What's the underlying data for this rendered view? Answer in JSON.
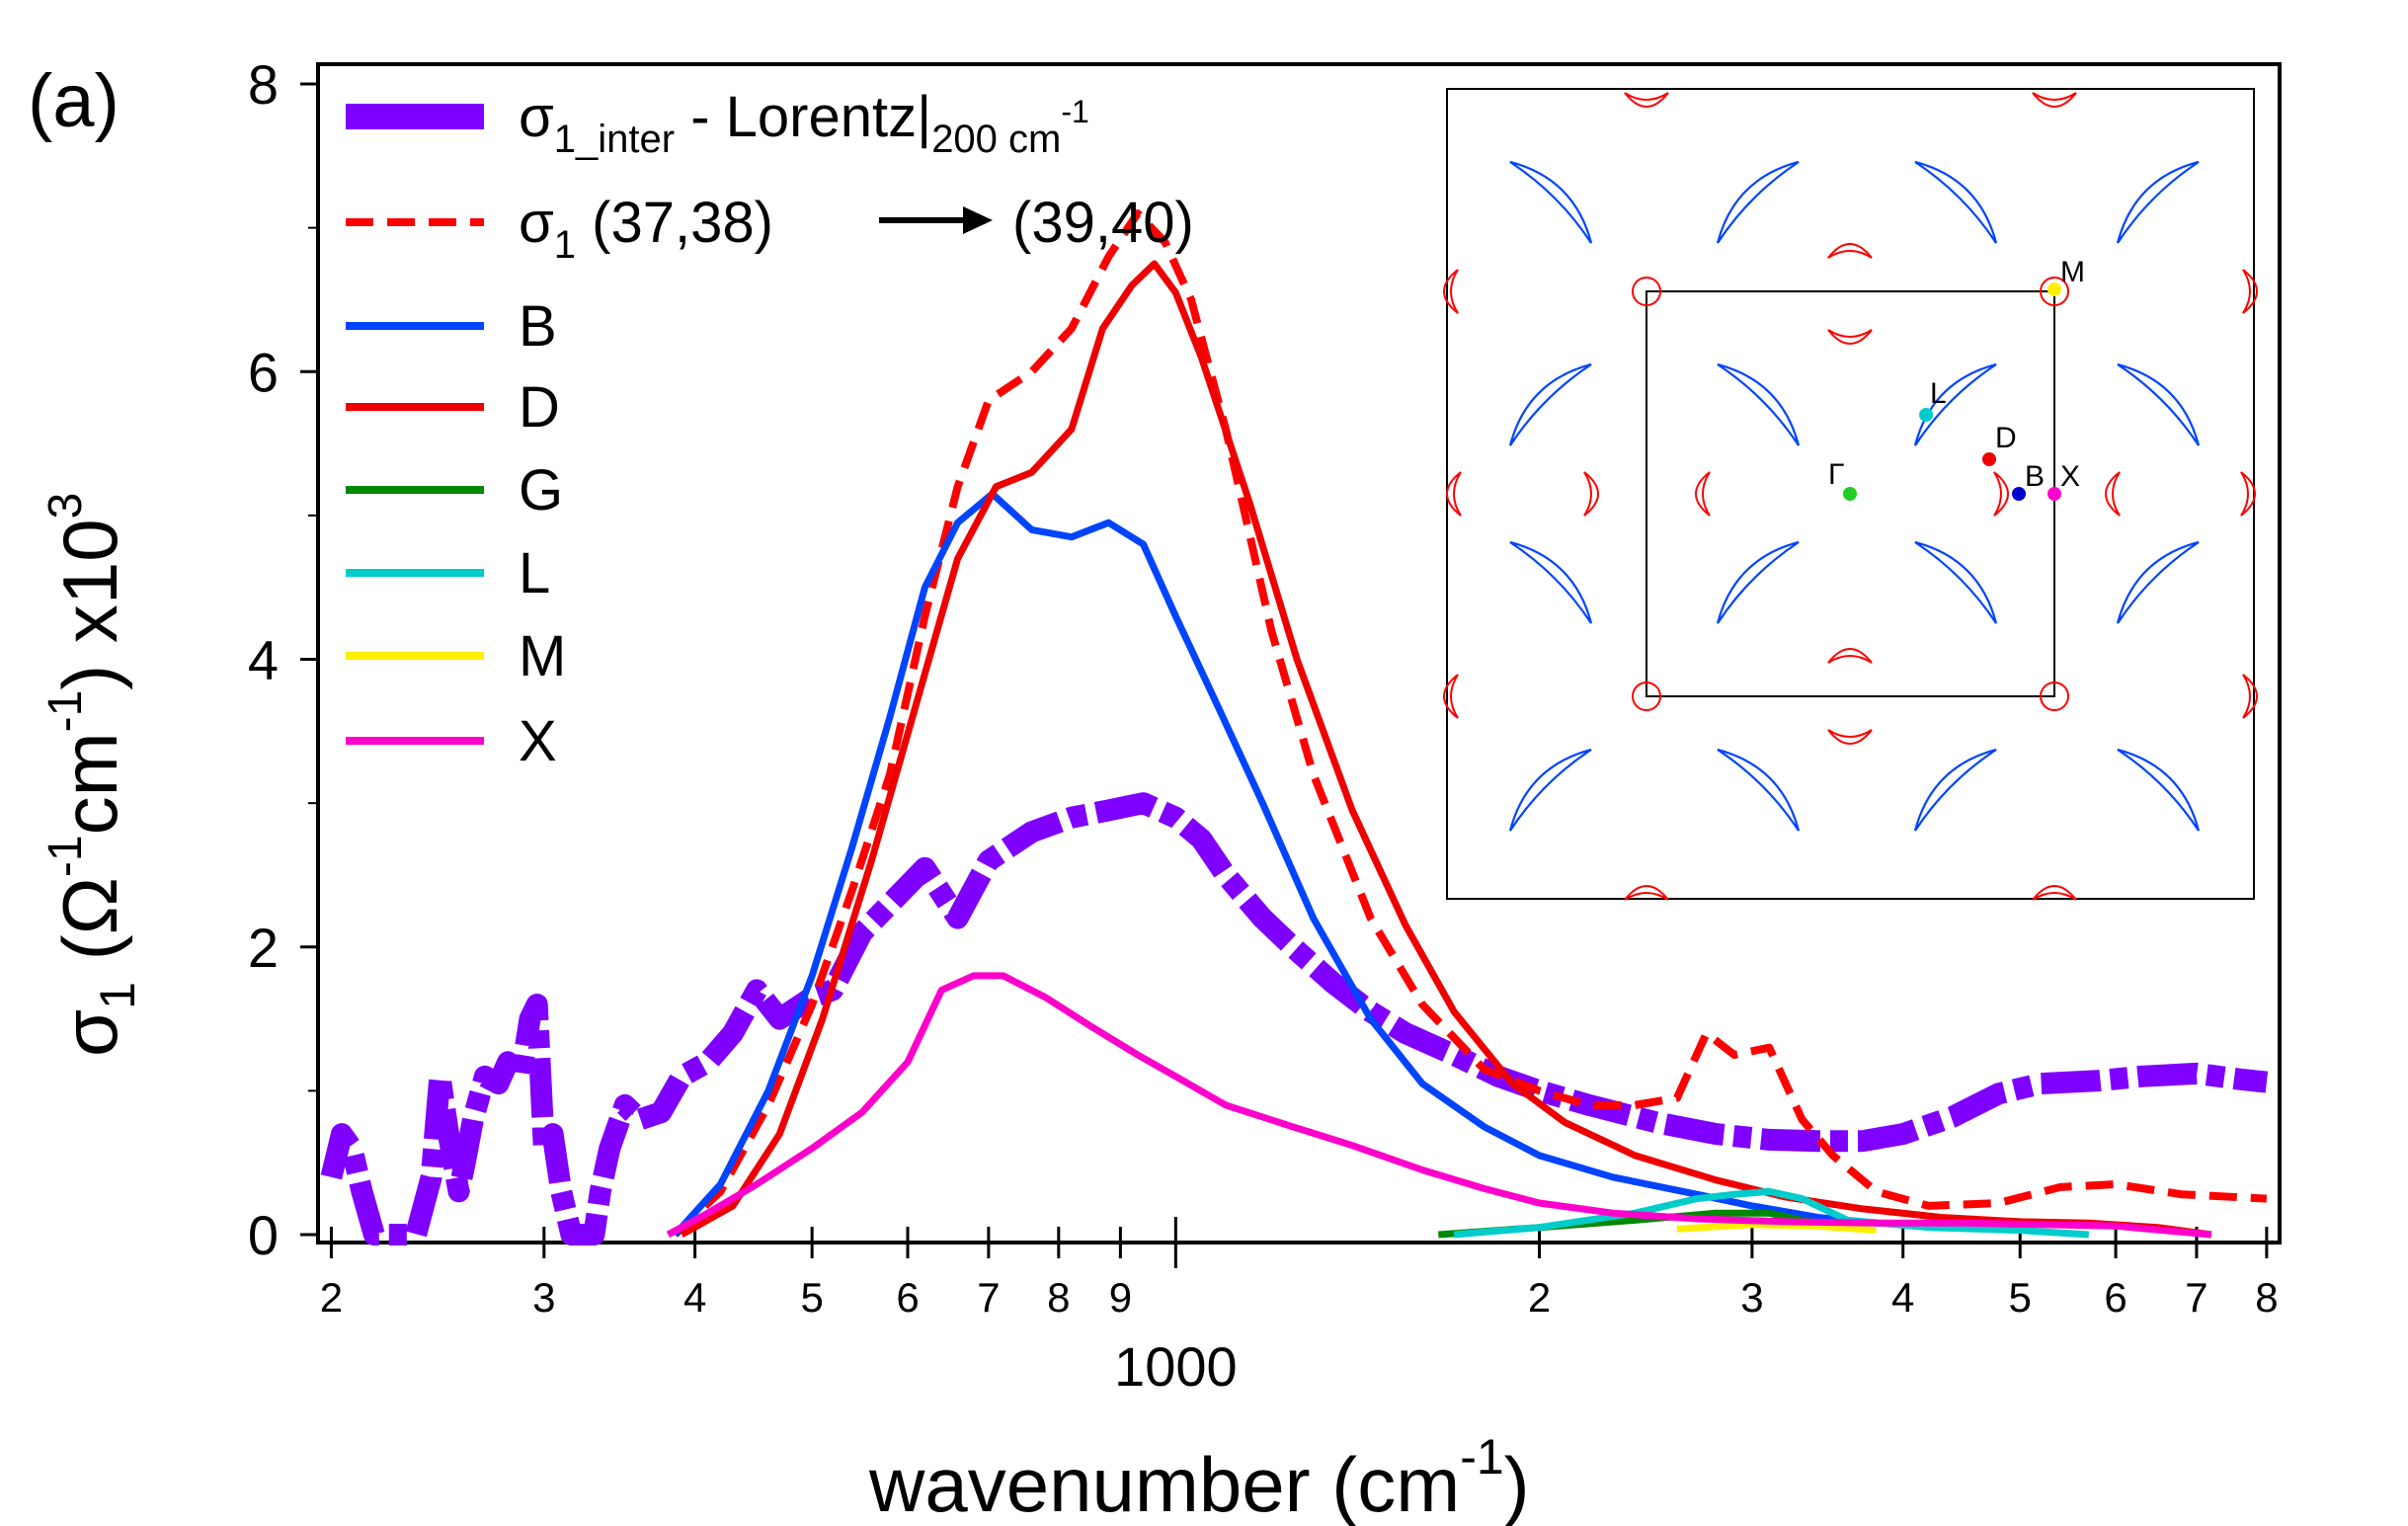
{
  "panel_label": "(a)",
  "chart_data": {
    "type": "line",
    "x_scale": "log",
    "xlim": [
      195,
      8200
    ],
    "ylim": [
      0,
      8000
    ],
    "ylabel": "σ1 (Ω-1cm-1) x103",
    "xlabel": "wavenumber (cm-1)",
    "x_tick_values": [
      200,
      300,
      400,
      500,
      600,
      700,
      800,
      900,
      1000,
      2000,
      3000,
      4000,
      5000,
      6000,
      7000,
      8000
    ],
    "x_tick_labels": [
      "2",
      "3",
      "4",
      "5",
      "6",
      "7",
      "8",
      "9",
      "",
      "2",
      "3",
      "4",
      "5",
      "6",
      "7",
      "8"
    ],
    "x_decade_label": "1000",
    "y_tick_values": [
      0,
      2000,
      4000,
      6000,
      8000
    ],
    "y_tick_labels": [
      "0",
      "2",
      "4",
      "6",
      "8"
    ],
    "legend_position": "top-left",
    "series": [
      {
        "name": "σ1_inter - Lorentz|200 cm-1",
        "color": "#8000ff",
        "dash": "thick-dashed",
        "points": [
          [
            200,
            400
          ],
          [
            204,
            700
          ],
          [
            208,
            600
          ],
          [
            212,
            300
          ],
          [
            217,
            0
          ],
          [
            235,
            0
          ],
          [
            242,
            400
          ],
          [
            246,
            1100
          ],
          [
            250,
            700
          ],
          [
            255,
            300
          ],
          [
            258,
            500
          ],
          [
            262,
            800
          ],
          [
            268,
            1100
          ],
          [
            275,
            1050
          ],
          [
            280,
            1200
          ],
          [
            287,
            1100
          ],
          [
            292,
            1500
          ],
          [
            296,
            1600
          ],
          [
            300,
            600
          ],
          [
            305,
            700
          ],
          [
            310,
            300
          ],
          [
            316,
            0
          ],
          [
            330,
            0
          ],
          [
            334,
            300
          ],
          [
            340,
            600
          ],
          [
            350,
            900
          ],
          [
            360,
            800
          ],
          [
            375,
            850
          ],
          [
            390,
            1100
          ],
          [
            410,
            1200
          ],
          [
            430,
            1400
          ],
          [
            450,
            1700
          ],
          [
            470,
            1500
          ],
          [
            500,
            1650
          ],
          [
            520,
            1700
          ],
          [
            550,
            2100
          ],
          [
            580,
            2300
          ],
          [
            620,
            2550
          ],
          [
            660,
            2200
          ],
          [
            700,
            2600
          ],
          [
            760,
            2800
          ],
          [
            820,
            2900
          ],
          [
            880,
            2950
          ],
          [
            940,
            3000
          ],
          [
            1000,
            2900
          ],
          [
            1050,
            2750
          ],
          [
            1100,
            2500
          ],
          [
            1180,
            2200
          ],
          [
            1250,
            2000
          ],
          [
            1350,
            1750
          ],
          [
            1450,
            1550
          ],
          [
            1550,
            1400
          ],
          [
            1700,
            1250
          ],
          [
            1850,
            1100
          ],
          [
            2000,
            1000
          ],
          [
            2200,
            900
          ],
          [
            2500,
            780
          ],
          [
            2800,
            700
          ],
          [
            3100,
            660
          ],
          [
            3400,
            650
          ],
          [
            3700,
            650
          ],
          [
            4000,
            700
          ],
          [
            4400,
            820
          ],
          [
            4800,
            980
          ],
          [
            5200,
            1050
          ],
          [
            5800,
            1070
          ],
          [
            6300,
            1100
          ],
          [
            7000,
            1120
          ],
          [
            7600,
            1080
          ],
          [
            8000,
            1060
          ]
        ]
      },
      {
        "name": "σ1 (37,38) → (39,40)",
        "color": "#ff0000",
        "dash": "dashed",
        "points": [
          [
            385,
            0
          ],
          [
            420,
            300
          ],
          [
            460,
            900
          ],
          [
            500,
            1600
          ],
          [
            540,
            2400
          ],
          [
            580,
            3200
          ],
          [
            620,
            4300
          ],
          [
            660,
            5200
          ],
          [
            700,
            5800
          ],
          [
            760,
            6000
          ],
          [
            820,
            6300
          ],
          [
            880,
            6800
          ],
          [
            930,
            7100
          ],
          [
            980,
            6900
          ],
          [
            1030,
            6500
          ],
          [
            1100,
            5600
          ],
          [
            1200,
            4200
          ],
          [
            1300,
            3200
          ],
          [
            1450,
            2200
          ],
          [
            1600,
            1600
          ],
          [
            1800,
            1150
          ],
          [
            2000,
            1000
          ],
          [
            2200,
            900
          ],
          [
            2400,
            900
          ],
          [
            2600,
            950
          ],
          [
            2750,
            1400
          ],
          [
            2900,
            1250
          ],
          [
            3100,
            1300
          ],
          [
            3300,
            800
          ],
          [
            3500,
            550
          ],
          [
            3800,
            300
          ],
          [
            4200,
            200
          ],
          [
            4800,
            220
          ],
          [
            5400,
            330
          ],
          [
            6000,
            350
          ],
          [
            6800,
            280
          ],
          [
            8000,
            250
          ]
        ]
      },
      {
        "name": "B",
        "color": "#0044ff",
        "dash": "solid",
        "points": [
          [
            385,
            0
          ],
          [
            420,
            350
          ],
          [
            460,
            1000
          ],
          [
            500,
            1800
          ],
          [
            540,
            2700
          ],
          [
            580,
            3600
          ],
          [
            620,
            4500
          ],
          [
            660,
            4950
          ],
          [
            705,
            5150
          ],
          [
            760,
            4900
          ],
          [
            820,
            4850
          ],
          [
            880,
            4950
          ],
          [
            940,
            4800
          ],
          [
            1000,
            4300
          ],
          [
            1080,
            3700
          ],
          [
            1180,
            3000
          ],
          [
            1300,
            2200
          ],
          [
            1450,
            1500
          ],
          [
            1600,
            1050
          ],
          [
            1800,
            750
          ],
          [
            2000,
            550
          ],
          [
            2300,
            400
          ],
          [
            2700,
            280
          ],
          [
            3000,
            200
          ],
          [
            3400,
            120
          ],
          [
            3800,
            80
          ],
          [
            4200,
            60
          ],
          [
            5000,
            50
          ]
        ]
      },
      {
        "name": "D",
        "color": "#ee0000",
        "dash": "solid",
        "points": [
          [
            390,
            0
          ],
          [
            430,
            200
          ],
          [
            470,
            700
          ],
          [
            510,
            1500
          ],
          [
            560,
            2600
          ],
          [
            620,
            3900
          ],
          [
            660,
            4700
          ],
          [
            710,
            5200
          ],
          [
            760,
            5300
          ],
          [
            820,
            5600
          ],
          [
            870,
            6300
          ],
          [
            920,
            6600
          ],
          [
            960,
            6750
          ],
          [
            1000,
            6550
          ],
          [
            1050,
            6100
          ],
          [
            1150,
            5100
          ],
          [
            1260,
            4000
          ],
          [
            1400,
            2950
          ],
          [
            1550,
            2150
          ],
          [
            1700,
            1550
          ],
          [
            1900,
            1050
          ],
          [
            2100,
            780
          ],
          [
            2400,
            550
          ],
          [
            2800,
            380
          ],
          [
            3200,
            260
          ],
          [
            3700,
            180
          ],
          [
            4300,
            120
          ],
          [
            5000,
            90
          ],
          [
            5700,
            80
          ],
          [
            6500,
            50
          ],
          [
            7200,
            0
          ]
        ]
      },
      {
        "name": "G",
        "color": "#008800",
        "dash": "solid",
        "points": [
          [
            1650,
            0
          ],
          [
            2000,
            50
          ],
          [
            2400,
            100
          ],
          [
            2800,
            150
          ],
          [
            3100,
            150
          ],
          [
            3300,
            100
          ],
          [
            3500,
            60
          ]
        ]
      },
      {
        "name": "L",
        "color": "#00cccc",
        "dash": "solid",
        "points": [
          [
            1700,
            0
          ],
          [
            2000,
            50
          ],
          [
            2400,
            150
          ],
          [
            2700,
            250
          ],
          [
            2900,
            280
          ],
          [
            3100,
            300
          ],
          [
            3300,
            250
          ],
          [
            3600,
            100
          ],
          [
            4200,
            50
          ],
          [
            5000,
            30
          ],
          [
            5700,
            0
          ]
        ]
      },
      {
        "name": "M",
        "color": "#ffee00",
        "dash": "solid",
        "points": [
          [
            2600,
            40
          ],
          [
            3000,
            70
          ],
          [
            3400,
            60
          ],
          [
            3800,
            30
          ]
        ]
      },
      {
        "name": "X",
        "color": "#ff00cc",
        "dash": "solid",
        "points": [
          [
            380,
            0
          ],
          [
            410,
            150
          ],
          [
            450,
            350
          ],
          [
            500,
            600
          ],
          [
            550,
            850
          ],
          [
            600,
            1200
          ],
          [
            640,
            1700
          ],
          [
            680,
            1800
          ],
          [
            720,
            1800
          ],
          [
            780,
            1650
          ],
          [
            850,
            1450
          ],
          [
            930,
            1250
          ],
          [
            1000,
            1100
          ],
          [
            1100,
            900
          ],
          [
            1250,
            750
          ],
          [
            1400,
            620
          ],
          [
            1600,
            450
          ],
          [
            1800,
            320
          ],
          [
            2000,
            220
          ],
          [
            2300,
            150
          ],
          [
            2700,
            110
          ],
          [
            3200,
            90
          ],
          [
            3800,
            80
          ],
          [
            4500,
            80
          ],
          [
            5200,
            70
          ],
          [
            6000,
            60
          ],
          [
            7200,
            0
          ]
        ]
      }
    ],
    "inset": {
      "points": [
        {
          "label": "M",
          "color": "#ffee00"
        },
        {
          "label": "L",
          "color": "#00cccc"
        },
        {
          "label": "D",
          "color": "#ee0000"
        },
        {
          "label": "Γ",
          "color": "#22cc22"
        },
        {
          "label": "B",
          "color": "#0000cc"
        },
        {
          "label": "X",
          "color": "#ff00cc"
        }
      ],
      "contour_colors": {
        "electron": "#0044ff",
        "hole": "#ff0000"
      }
    }
  }
}
